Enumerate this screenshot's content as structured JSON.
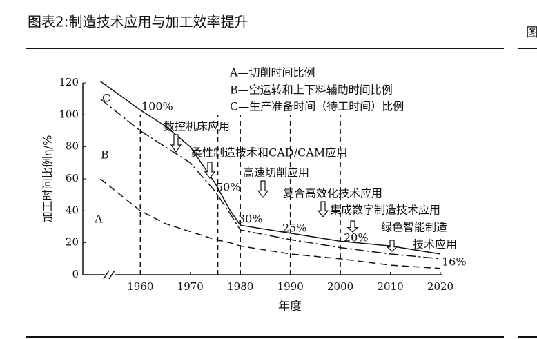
{
  "chart_data": {
    "type": "line",
    "title": "图表2:制造技术应用与加工效率提升",
    "x_label": "年度",
    "y_label": "加工时间比例η/%",
    "xlim": [
      1948.5,
      2020
    ],
    "ylim": [
      0,
      120
    ],
    "xticks": [
      1960,
      1970,
      1980,
      1990,
      2000,
      2010,
      2020
    ],
    "yticks": [
      0,
      20,
      40,
      60,
      80,
      100,
      120
    ],
    "x": [
      1952,
      1960,
      1965,
      1970,
      1975,
      1978,
      1980,
      1990,
      2000,
      2010,
      2020
    ],
    "series": [
      {
        "color": "#111111",
        "style": "solid",
        "values": [
          121,
          103,
          93,
          80,
          57,
          40,
          31,
          26,
          21,
          18,
          13
        ]
      },
      {
        "color": "#111111",
        "style": "dashdot",
        "values": [
          110,
          90,
          80,
          70,
          52,
          38,
          28,
          22,
          17,
          13,
          10
        ]
      },
      {
        "color": "#111111",
        "style": "dashed",
        "values": [
          60,
          40,
          32,
          27,
          22,
          20,
          18,
          13,
          10,
          6,
          4
        ]
      }
    ],
    "reference_lines": [
      1960,
      1975.5,
      1980,
      1990,
      2000
    ],
    "annotations": [
      "A—切削时间比例",
      "B—空运转和上下料辅助时间比例",
      "C—生产准备时间（待工时间）比例",
      "C",
      "B",
      "A",
      "100%",
      "数控机床应用",
      "柔性制造技术和CAD/CAM应用",
      "高速切削应用",
      "50%",
      "复合高效化技术应用",
      "集成数字制造技术应用",
      "30%",
      "绿色智能制造",
      "25%",
      "20%",
      "技术应用",
      "16%"
    ],
    "side_text": "图"
  }
}
